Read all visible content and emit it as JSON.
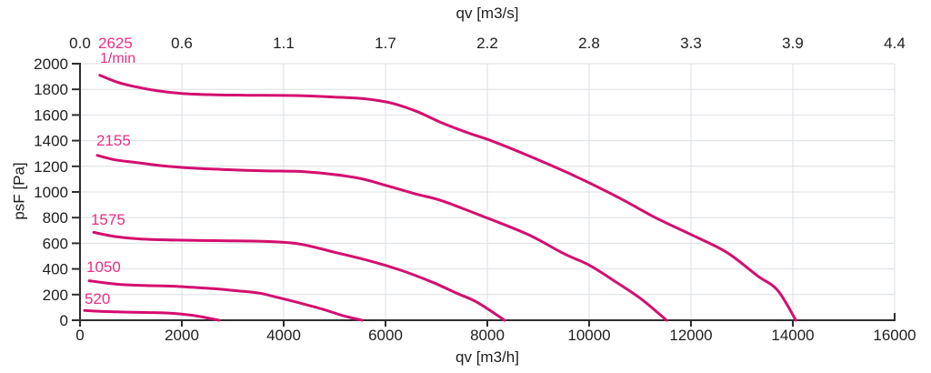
{
  "chart_data": {
    "type": "line",
    "title_top_axis": "qv [m3/s]",
    "xlabel": "qv [m3/h]",
    "ylabel": "psF [Pa]",
    "x_range": [
      0,
      16000
    ],
    "x_ticks": [
      0,
      2000,
      4000,
      6000,
      8000,
      10000,
      12000,
      14000,
      16000
    ],
    "top_axis_ticks": [
      "0.0",
      "0.6",
      "1.1",
      "1.7",
      "2.2",
      "2.8",
      "3.3",
      "3.9",
      "4.4"
    ],
    "y_range": [
      0,
      2000
    ],
    "y_ticks": [
      0,
      200,
      400,
      600,
      800,
      1000,
      1200,
      1400,
      1600,
      1800,
      2000
    ],
    "grid": true,
    "legend_position": "curve-start-labels",
    "rpm_unit": {
      "label": "1/min",
      "anchor": {
        "x": 393,
        "y": 2007
      }
    },
    "colors": {
      "curve": "#d40f6e",
      "series_label": "#ee2e87",
      "grid": "#dcdfe4",
      "axis": "#2e2e2e",
      "text": "#1f1f1f"
    },
    "series": [
      {
        "name": "2625",
        "rpm": 2625,
        "label": "2625",
        "label_anchor": {
          "x": 357,
          "y": 2120
        },
        "points": [
          [
            390,
            1910
          ],
          [
            700,
            1860
          ],
          [
            1000,
            1828
          ],
          [
            1500,
            1790
          ],
          [
            2000,
            1768
          ],
          [
            2600,
            1758
          ],
          [
            3300,
            1754
          ],
          [
            4200,
            1752
          ],
          [
            5000,
            1740
          ],
          [
            5600,
            1726
          ],
          [
            6100,
            1694
          ],
          [
            6600,
            1630
          ],
          [
            7100,
            1540
          ],
          [
            7600,
            1464
          ],
          [
            8100,
            1396
          ],
          [
            8800,
            1284
          ],
          [
            9700,
            1128
          ],
          [
            10600,
            952
          ],
          [
            11300,
            800
          ],
          [
            12000,
            668
          ],
          [
            12700,
            530
          ],
          [
            13300,
            348
          ],
          [
            13700,
            234
          ],
          [
            14060,
            0
          ]
        ]
      },
      {
        "name": "2155",
        "rpm": 2155,
        "label": "2155",
        "label_anchor": {
          "x": 321,
          "y": 1362
        },
        "points": [
          [
            340,
            1285
          ],
          [
            700,
            1250
          ],
          [
            1100,
            1230
          ],
          [
            1600,
            1205
          ],
          [
            2200,
            1186
          ],
          [
            2900,
            1174
          ],
          [
            3600,
            1165
          ],
          [
            4300,
            1160
          ],
          [
            4900,
            1140
          ],
          [
            5500,
            1106
          ],
          [
            6000,
            1052
          ],
          [
            6600,
            984
          ],
          [
            7100,
            932
          ],
          [
            7900,
            812
          ],
          [
            8800,
            668
          ],
          [
            9500,
            520
          ],
          [
            10000,
            430
          ],
          [
            10450,
            318
          ],
          [
            11000,
            172
          ],
          [
            11520,
            0
          ]
        ]
      },
      {
        "name": "1575",
        "rpm": 1575,
        "label": "1575",
        "label_anchor": {
          "x": 214,
          "y": 745
        },
        "points": [
          [
            270,
            685
          ],
          [
            700,
            652
          ],
          [
            1200,
            633
          ],
          [
            2000,
            624
          ],
          [
            2800,
            620
          ],
          [
            3600,
            615
          ],
          [
            4300,
            595
          ],
          [
            5000,
            530
          ],
          [
            5700,
            462
          ],
          [
            6300,
            390
          ],
          [
            6900,
            300
          ],
          [
            7400,
            210
          ],
          [
            7800,
            140
          ],
          [
            8340,
            0
          ]
        ]
      },
      {
        "name": "1050",
        "rpm": 1050,
        "label": "1050",
        "label_anchor": {
          "x": 125,
          "y": 376
        },
        "points": [
          [
            180,
            308
          ],
          [
            500,
            291
          ],
          [
            840,
            277
          ],
          [
            1300,
            270
          ],
          [
            1730,
            267
          ],
          [
            2200,
            257
          ],
          [
            2630,
            246
          ],
          [
            3100,
            229
          ],
          [
            3520,
            211
          ],
          [
            3900,
            176
          ],
          [
            4320,
            134
          ],
          [
            4800,
            82
          ],
          [
            5160,
            36
          ],
          [
            5540,
            0
          ]
        ]
      },
      {
        "name": "520",
        "rpm": 520,
        "label": "520",
        "label_anchor": {
          "x": 89,
          "y": 128
        },
        "points": [
          [
            90,
            76
          ],
          [
            400,
            69
          ],
          [
            840,
            64
          ],
          [
            1300,
            60
          ],
          [
            1730,
            56
          ],
          [
            2000,
            48
          ],
          [
            2270,
            35
          ],
          [
            2520,
            17
          ],
          [
            2730,
            0
          ]
        ]
      }
    ]
  }
}
